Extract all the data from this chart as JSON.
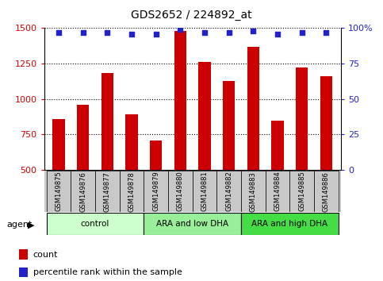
{
  "title": "GDS2652 / 224892_at",
  "categories": [
    "GSM149875",
    "GSM149876",
    "GSM149877",
    "GSM149878",
    "GSM149879",
    "GSM149880",
    "GSM149881",
    "GSM149882",
    "GSM149883",
    "GSM149884",
    "GSM149885",
    "GSM149886"
  ],
  "bar_values": [
    860,
    960,
    1185,
    890,
    710,
    1480,
    1260,
    1130,
    1370,
    850,
    1220,
    1160
  ],
  "percentile_values": [
    97,
    97,
    97,
    96,
    96,
    99,
    97,
    97,
    98,
    96,
    97,
    97
  ],
  "bar_color": "#cc0000",
  "dot_color": "#2222cc",
  "ylim_left": [
    500,
    1500
  ],
  "ylim_right": [
    0,
    100
  ],
  "yticks_left": [
    500,
    750,
    1000,
    1250,
    1500
  ],
  "yticks_right": [
    0,
    25,
    50,
    75,
    100
  ],
  "groups": [
    {
      "label": "control",
      "indices": [
        0,
        1,
        2,
        3
      ],
      "color": "#ccffcc"
    },
    {
      "label": "ARA and low DHA",
      "indices": [
        4,
        5,
        6,
        7
      ],
      "color": "#99ee99"
    },
    {
      "label": "ARA and high DHA",
      "indices": [
        8,
        9,
        10,
        11
      ],
      "color": "#44dd44"
    }
  ],
  "agent_label": "agent",
  "legend_count_label": "count",
  "legend_percentile_label": "percentile rank within the sample",
  "bar_width": 0.5,
  "bg_color": "#ffffff",
  "grid_color": "#000000",
  "title_fontsize": 10,
  "axis_label_color_left": "#cc0000",
  "axis_label_color_right": "#2222cc",
  "label_area_color": "#c8c8c8"
}
